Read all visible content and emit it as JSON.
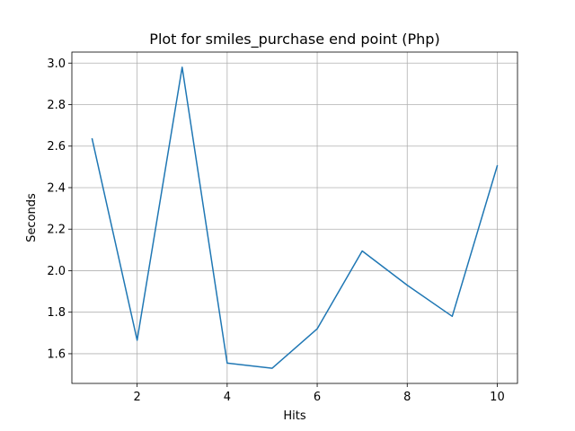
{
  "chart_data": {
    "type": "line",
    "title": "Plot for smiles_purchase end point (Php)",
    "xlabel": "Hits",
    "ylabel": "Seconds",
    "x": [
      1,
      2,
      3,
      4,
      5,
      6,
      7,
      8,
      9,
      10
    ],
    "series": [
      {
        "values": [
          2.635,
          1.665,
          2.98,
          1.555,
          1.53,
          1.72,
          2.095,
          1.93,
          1.78,
          2.505
        ],
        "color": "#1f77b4"
      }
    ],
    "xlim": [
      0.55,
      10.45
    ],
    "ylim": [
      1.457,
      3.053
    ],
    "xticks": [
      2,
      4,
      6,
      8,
      10
    ],
    "xtick_labels": [
      "2",
      "4",
      "6",
      "8",
      "10"
    ],
    "yticks": [
      1.6,
      1.8,
      2.0,
      2.2,
      2.4,
      2.6,
      2.8,
      3.0
    ],
    "ytick_labels": [
      "1.6",
      "1.8",
      "2.0",
      "2.2",
      "2.4",
      "2.6",
      "2.8",
      "3.0"
    ],
    "grid": true,
    "legend": "none"
  }
}
